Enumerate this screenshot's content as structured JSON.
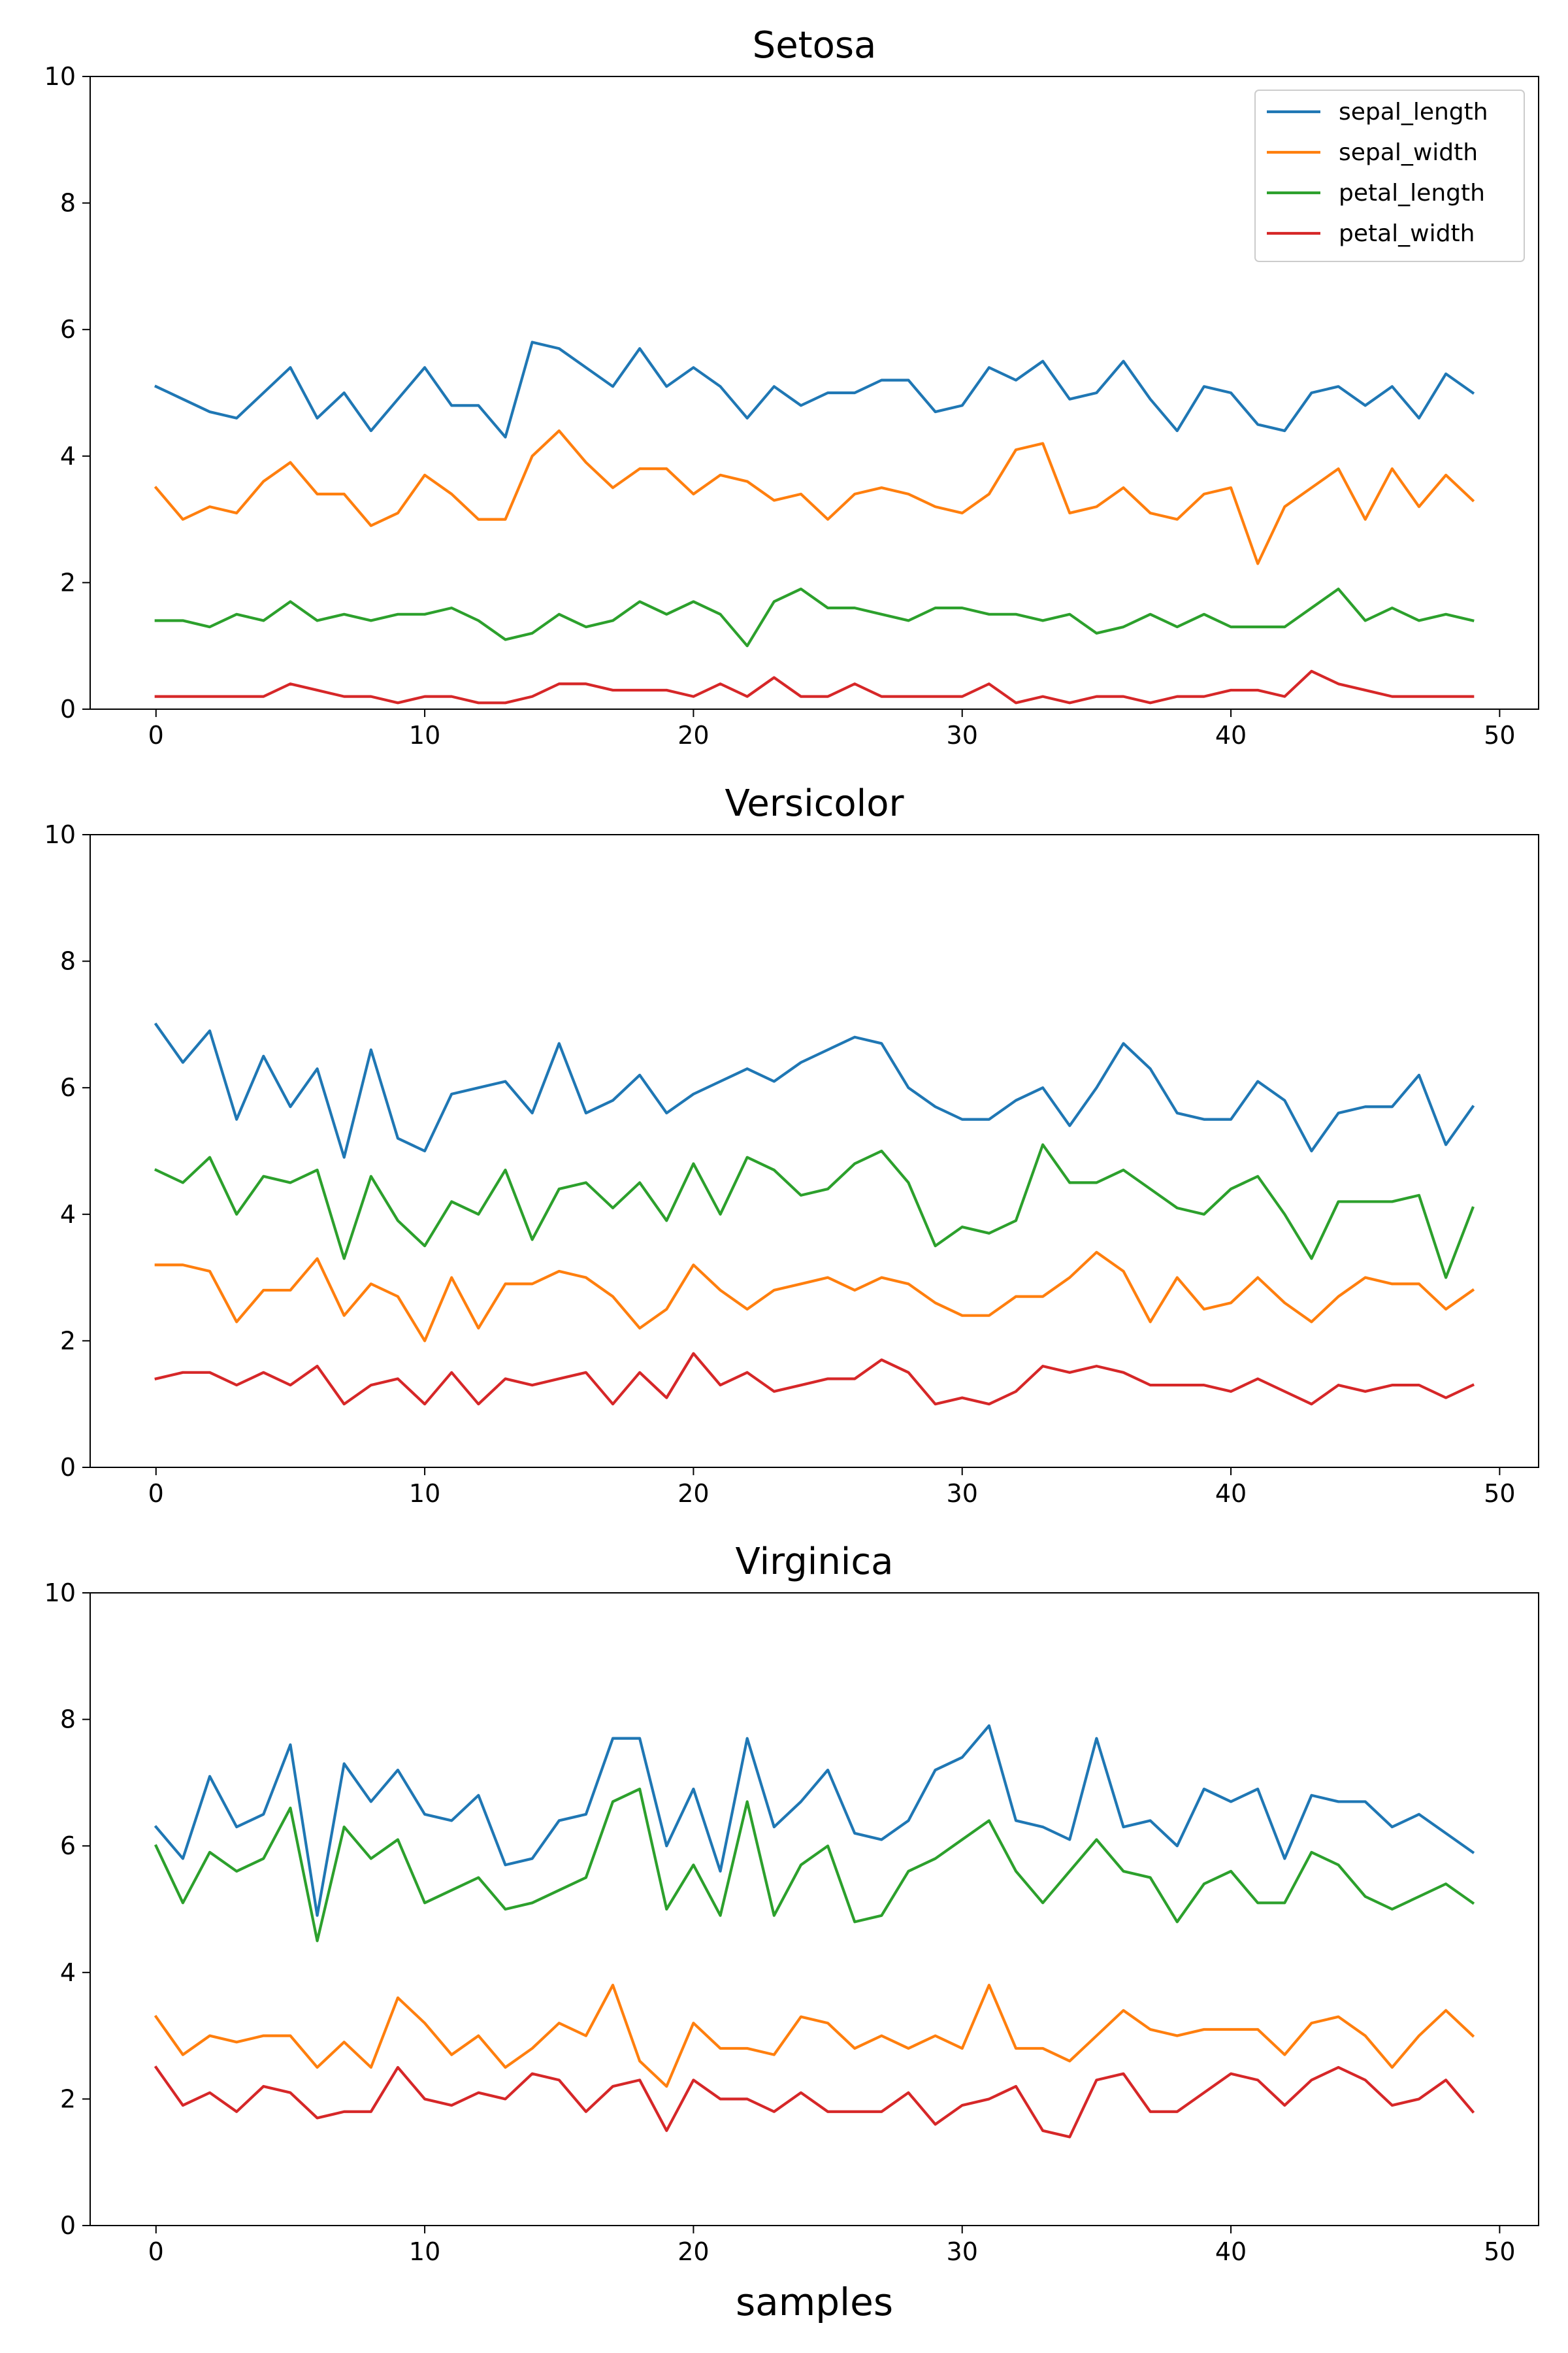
{
  "chart_data": [
    {
      "type": "line",
      "title": "Setosa",
      "xlabel": "",
      "ylabel": "",
      "xlim": [
        -2.45,
        51.45
      ],
      "ylim": [
        0,
        10
      ],
      "xticks": [
        0,
        10,
        20,
        30,
        40,
        50
      ],
      "yticks": [
        0,
        2,
        4,
        6,
        8,
        10
      ],
      "legend": "top-right",
      "grid": false,
      "x": [
        0,
        1,
        2,
        3,
        4,
        5,
        6,
        7,
        8,
        9,
        10,
        11,
        12,
        13,
        14,
        15,
        16,
        17,
        18,
        19,
        20,
        21,
        22,
        23,
        24,
        25,
        26,
        27,
        28,
        29,
        30,
        31,
        32,
        33,
        34,
        35,
        36,
        37,
        38,
        39,
        40,
        41,
        42,
        43,
        44,
        45,
        46,
        47,
        48,
        49
      ],
      "series": [
        {
          "name": "sepal_length",
          "color": "#1f77b4",
          "values": [
            5.1,
            4.9,
            4.7,
            4.6,
            5.0,
            5.4,
            4.6,
            5.0,
            4.4,
            4.9,
            5.4,
            4.8,
            4.8,
            4.3,
            5.8,
            5.7,
            5.4,
            5.1,
            5.7,
            5.1,
            5.4,
            5.1,
            4.6,
            5.1,
            4.8,
            5.0,
            5.0,
            5.2,
            5.2,
            4.7,
            4.8,
            5.4,
            5.2,
            5.5,
            4.9,
            5.0,
            5.5,
            4.9,
            4.4,
            5.1,
            5.0,
            4.5,
            4.4,
            5.0,
            5.1,
            4.8,
            5.1,
            4.6,
            5.3,
            5.0
          ]
        },
        {
          "name": "sepal_width",
          "color": "#ff7f0e",
          "values": [
            3.5,
            3.0,
            3.2,
            3.1,
            3.6,
            3.9,
            3.4,
            3.4,
            2.9,
            3.1,
            3.7,
            3.4,
            3.0,
            3.0,
            4.0,
            4.4,
            3.9,
            3.5,
            3.8,
            3.8,
            3.4,
            3.7,
            3.6,
            3.3,
            3.4,
            3.0,
            3.4,
            3.5,
            3.4,
            3.2,
            3.1,
            3.4,
            4.1,
            4.2,
            3.1,
            3.2,
            3.5,
            3.1,
            3.0,
            3.4,
            3.5,
            2.3,
            3.2,
            3.5,
            3.8,
            3.0,
            3.8,
            3.2,
            3.7,
            3.3
          ]
        },
        {
          "name": "petal_length",
          "color": "#2ca02c",
          "values": [
            1.4,
            1.4,
            1.3,
            1.5,
            1.4,
            1.7,
            1.4,
            1.5,
            1.4,
            1.5,
            1.5,
            1.6,
            1.4,
            1.1,
            1.2,
            1.5,
            1.3,
            1.4,
            1.7,
            1.5,
            1.7,
            1.5,
            1.0,
            1.7,
            1.9,
            1.6,
            1.6,
            1.5,
            1.4,
            1.6,
            1.6,
            1.5,
            1.5,
            1.4,
            1.5,
            1.2,
            1.3,
            1.5,
            1.3,
            1.5,
            1.3,
            1.3,
            1.3,
            1.6,
            1.9,
            1.4,
            1.6,
            1.4,
            1.5,
            1.4
          ]
        },
        {
          "name": "petal_width",
          "color": "#d62728",
          "values": [
            0.2,
            0.2,
            0.2,
            0.2,
            0.2,
            0.4,
            0.3,
            0.2,
            0.2,
            0.1,
            0.2,
            0.2,
            0.1,
            0.1,
            0.2,
            0.4,
            0.4,
            0.3,
            0.3,
            0.3,
            0.2,
            0.4,
            0.2,
            0.5,
            0.2,
            0.2,
            0.4,
            0.2,
            0.2,
            0.2,
            0.2,
            0.4,
            0.1,
            0.2,
            0.1,
            0.2,
            0.2,
            0.1,
            0.2,
            0.2,
            0.3,
            0.3,
            0.2,
            0.6,
            0.4,
            0.3,
            0.2,
            0.2,
            0.2,
            0.2
          ]
        }
      ]
    },
    {
      "type": "line",
      "title": "Versicolor",
      "xlabel": "",
      "ylabel": "",
      "xlim": [
        -2.45,
        51.45
      ],
      "ylim": [
        0,
        10
      ],
      "xticks": [
        0,
        10,
        20,
        30,
        40,
        50
      ],
      "yticks": [
        0,
        2,
        4,
        6,
        8,
        10
      ],
      "legend": "none",
      "grid": false,
      "x": [
        0,
        1,
        2,
        3,
        4,
        5,
        6,
        7,
        8,
        9,
        10,
        11,
        12,
        13,
        14,
        15,
        16,
        17,
        18,
        19,
        20,
        21,
        22,
        23,
        24,
        25,
        26,
        27,
        28,
        29,
        30,
        31,
        32,
        33,
        34,
        35,
        36,
        37,
        38,
        39,
        40,
        41,
        42,
        43,
        44,
        45,
        46,
        47,
        48,
        49
      ],
      "series": [
        {
          "color": "#1f77b4",
          "values": [
            7.0,
            6.4,
            6.9,
            5.5,
            6.5,
            5.7,
            6.3,
            4.9,
            6.6,
            5.2,
            5.0,
            5.9,
            6.0,
            6.1,
            5.6,
            6.7,
            5.6,
            5.8,
            6.2,
            5.6,
            5.9,
            6.1,
            6.3,
            6.1,
            6.4,
            6.6,
            6.8,
            6.7,
            6.0,
            5.7,
            5.5,
            5.5,
            5.8,
            6.0,
            5.4,
            6.0,
            6.7,
            6.3,
            5.6,
            5.5,
            5.5,
            6.1,
            5.8,
            5.0,
            5.6,
            5.7,
            5.7,
            6.2,
            5.1,
            5.7
          ]
        },
        {
          "color": "#ff7f0e",
          "values": [
            3.2,
            3.2,
            3.1,
            2.3,
            2.8,
            2.8,
            3.3,
            2.4,
            2.9,
            2.7,
            2.0,
            3.0,
            2.2,
            2.9,
            2.9,
            3.1,
            3.0,
            2.7,
            2.2,
            2.5,
            3.2,
            2.8,
            2.5,
            2.8,
            2.9,
            3.0,
            2.8,
            3.0,
            2.9,
            2.6,
            2.4,
            2.4,
            2.7,
            2.7,
            3.0,
            3.4,
            3.1,
            2.3,
            3.0,
            2.5,
            2.6,
            3.0,
            2.6,
            2.3,
            2.7,
            3.0,
            2.9,
            2.9,
            2.5,
            2.8
          ]
        },
        {
          "color": "#2ca02c",
          "values": [
            4.7,
            4.5,
            4.9,
            4.0,
            4.6,
            4.5,
            4.7,
            3.3,
            4.6,
            3.9,
            3.5,
            4.2,
            4.0,
            4.7,
            3.6,
            4.4,
            4.5,
            4.1,
            4.5,
            3.9,
            4.8,
            4.0,
            4.9,
            4.7,
            4.3,
            4.4,
            4.8,
            5.0,
            4.5,
            3.5,
            3.8,
            3.7,
            3.9,
            5.1,
            4.5,
            4.5,
            4.7,
            4.4,
            4.1,
            4.0,
            4.4,
            4.6,
            4.0,
            3.3,
            4.2,
            4.2,
            4.2,
            4.3,
            3.0,
            4.1
          ]
        },
        {
          "color": "#d62728",
          "values": [
            1.4,
            1.5,
            1.5,
            1.3,
            1.5,
            1.3,
            1.6,
            1.0,
            1.3,
            1.4,
            1.0,
            1.5,
            1.0,
            1.4,
            1.3,
            1.4,
            1.5,
            1.0,
            1.5,
            1.1,
            1.8,
            1.3,
            1.5,
            1.2,
            1.3,
            1.4,
            1.4,
            1.7,
            1.5,
            1.0,
            1.1,
            1.0,
            1.2,
            1.6,
            1.5,
            1.6,
            1.5,
            1.3,
            1.3,
            1.3,
            1.2,
            1.4,
            1.2,
            1.0,
            1.3,
            1.2,
            1.3,
            1.3,
            1.1,
            1.3
          ]
        }
      ]
    },
    {
      "type": "line",
      "title": "Virginica",
      "xlabel": "samples",
      "ylabel": "",
      "xlim": [
        -2.45,
        51.45
      ],
      "ylim": [
        0,
        10
      ],
      "xticks": [
        0,
        10,
        20,
        30,
        40,
        50
      ],
      "yticks": [
        0,
        2,
        4,
        6,
        8,
        10
      ],
      "legend": "none",
      "grid": false,
      "x": [
        0,
        1,
        2,
        3,
        4,
        5,
        6,
        7,
        8,
        9,
        10,
        11,
        12,
        13,
        14,
        15,
        16,
        17,
        18,
        19,
        20,
        21,
        22,
        23,
        24,
        25,
        26,
        27,
        28,
        29,
        30,
        31,
        32,
        33,
        34,
        35,
        36,
        37,
        38,
        39,
        40,
        41,
        42,
        43,
        44,
        45,
        46,
        47,
        48,
        49
      ],
      "series": [
        {
          "color": "#1f77b4",
          "values": [
            6.3,
            5.8,
            7.1,
            6.3,
            6.5,
            7.6,
            4.9,
            7.3,
            6.7,
            7.2,
            6.5,
            6.4,
            6.8,
            5.7,
            5.8,
            6.4,
            6.5,
            7.7,
            7.7,
            6.0,
            6.9,
            5.6,
            7.7,
            6.3,
            6.7,
            7.2,
            6.2,
            6.1,
            6.4,
            7.2,
            7.4,
            7.9,
            6.4,
            6.3,
            6.1,
            7.7,
            6.3,
            6.4,
            6.0,
            6.9,
            6.7,
            6.9,
            5.8,
            6.8,
            6.7,
            6.7,
            6.3,
            6.5,
            6.2,
            5.9
          ]
        },
        {
          "color": "#ff7f0e",
          "values": [
            3.3,
            2.7,
            3.0,
            2.9,
            3.0,
            3.0,
            2.5,
            2.9,
            2.5,
            3.6,
            3.2,
            2.7,
            3.0,
            2.5,
            2.8,
            3.2,
            3.0,
            3.8,
            2.6,
            2.2,
            3.2,
            2.8,
            2.8,
            2.7,
            3.3,
            3.2,
            2.8,
            3.0,
            2.8,
            3.0,
            2.8,
            3.8,
            2.8,
            2.8,
            2.6,
            3.0,
            3.4,
            3.1,
            3.0,
            3.1,
            3.1,
            3.1,
            2.7,
            3.2,
            3.3,
            3.0,
            2.5,
            3.0,
            3.4,
            3.0
          ]
        },
        {
          "color": "#2ca02c",
          "values": [
            6.0,
            5.1,
            5.9,
            5.6,
            5.8,
            6.6,
            4.5,
            6.3,
            5.8,
            6.1,
            5.1,
            5.3,
            5.5,
            5.0,
            5.1,
            5.3,
            5.5,
            6.7,
            6.9,
            5.0,
            5.7,
            4.9,
            6.7,
            4.9,
            5.7,
            6.0,
            4.8,
            4.9,
            5.6,
            5.8,
            6.1,
            6.4,
            5.6,
            5.1,
            5.6,
            6.1,
            5.6,
            5.5,
            4.8,
            5.4,
            5.6,
            5.1,
            5.1,
            5.9,
            5.7,
            5.2,
            5.0,
            5.2,
            5.4,
            5.1
          ]
        },
        {
          "color": "#d62728",
          "values": [
            2.5,
            1.9,
            2.1,
            1.8,
            2.2,
            2.1,
            1.7,
            1.8,
            1.8,
            2.5,
            2.0,
            1.9,
            2.1,
            2.0,
            2.4,
            2.3,
            1.8,
            2.2,
            2.3,
            1.5,
            2.3,
            2.0,
            2.0,
            1.8,
            2.1,
            1.8,
            1.8,
            1.8,
            2.1,
            1.6,
            1.9,
            2.0,
            2.2,
            1.5,
            1.4,
            2.3,
            2.4,
            1.8,
            1.8,
            2.1,
            2.4,
            2.3,
            1.9,
            2.3,
            2.5,
            2.3,
            1.9,
            2.0,
            2.3,
            1.8
          ]
        }
      ]
    }
  ]
}
